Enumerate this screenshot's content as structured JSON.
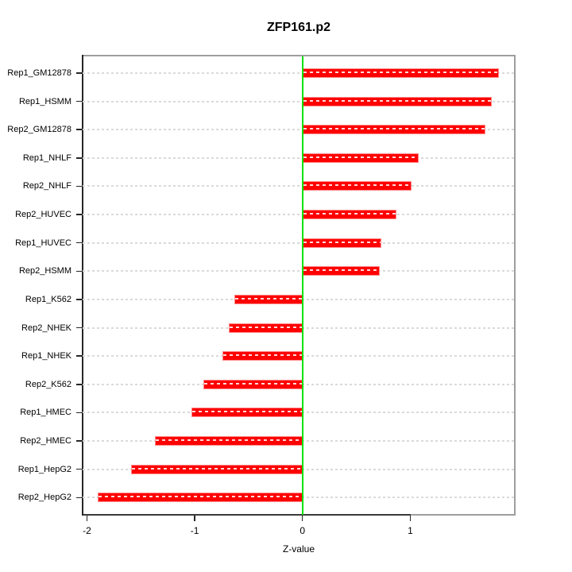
{
  "chart_data": {
    "type": "bar",
    "orientation": "horizontal",
    "title": "ZFP161.p2",
    "xlabel": "Z-value",
    "categories": [
      "Rep1_GM12878",
      "Rep1_HSMM",
      "Rep2_GM12878",
      "Rep1_NHLF",
      "Rep2_NHLF",
      "Rep2_HUVEC",
      "Rep1_HUVEC",
      "Rep2_HSMM",
      "Rep1_K562",
      "Rep2_NHEK",
      "Rep1_NHEK",
      "Rep2_K562",
      "Rep1_HMEC",
      "Rep2_HMEC",
      "Rep1_HepG2",
      "Rep2_HepG2"
    ],
    "values": [
      1.82,
      1.76,
      1.7,
      1.08,
      1.01,
      0.87,
      0.73,
      0.72,
      -0.63,
      -0.68,
      -0.74,
      -0.92,
      -1.03,
      -1.37,
      -1.59,
      -1.9
    ],
    "xlim": [
      -2.04,
      1.97
    ],
    "x_ticks": [
      -2,
      -1,
      0,
      1
    ],
    "x_tick_labels": [
      "-2",
      "-1",
      "0",
      "1"
    ],
    "grid": true,
    "grid_style": "dashed-horizontal",
    "colors": {
      "bar": "#ff0000",
      "bar_edge": "#ff8a8a",
      "bar_dash_overlay": "#ffffff",
      "zero_line": "#00e100",
      "gridline": "#dadada",
      "axis": "#262626",
      "box": "#9e9e9e",
      "text": "#000000",
      "background": "#ffffff"
    }
  }
}
